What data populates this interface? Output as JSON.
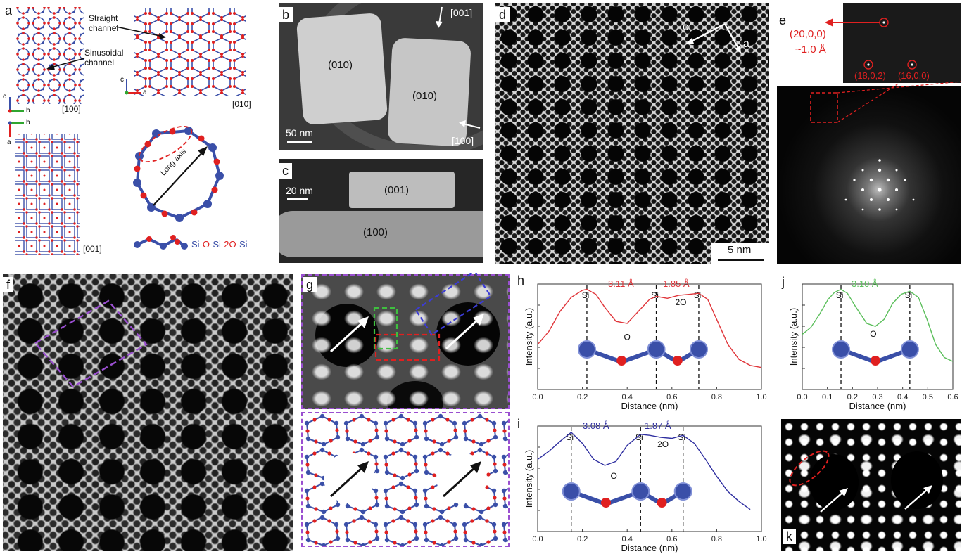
{
  "panels": {
    "a": {
      "label": "a",
      "straight_channel": "Straight\nchannel",
      "sinusoidal_channel": "Sinusoidal\nchannel",
      "view_100": "[100]",
      "view_010": "[010]",
      "view_001": "[001]",
      "axis_c": "c",
      "axis_b": "b",
      "axis_a": "a",
      "long_axis": "Long axis",
      "legend": [
        "Si",
        "-",
        "O",
        "-",
        "Si",
        "-",
        "2O",
        "-",
        "Si"
      ]
    },
    "b": {
      "label": "b",
      "facet_left": "(010)",
      "facet_right": "(010)",
      "dir_001": "[001]",
      "dir_100": "[100]",
      "scale": "50 nm"
    },
    "c": {
      "label": "c",
      "facet_top": "(001)",
      "facet_bottom": "(100)",
      "scale": "20 nm"
    },
    "d": {
      "label": "d",
      "axis_c": "c",
      "axis_a": "a",
      "scale": "5 nm"
    },
    "e": {
      "label": "e",
      "spot_main": "(20,0,0)",
      "spot_res": "~1.0 Å",
      "spot_a": "(18,0,2)",
      "spot_b": "(16,0,0)"
    },
    "f": {
      "label": "f"
    },
    "g": {
      "label": "g"
    },
    "h": {
      "label": "h",
      "label_d1": "3.11 Å",
      "label_d2": "1.85 Å"
    },
    "i": {
      "label": "i",
      "label_d1": "3.08 Å",
      "label_d2": "1.87 Å"
    },
    "j": {
      "label": "j",
      "label_d1": "3.10 Å"
    },
    "k": {
      "label": "k"
    }
  },
  "colors": {
    "si": "#3a4fa8",
    "o": "#e02020",
    "h_line": "#e0353a",
    "i_line": "#2f2fa0",
    "j_line": "#5cbf5c",
    "box_purple": "#9a4fd0",
    "box_green": "#3fbf3f",
    "box_blue": "#3c3cd6"
  },
  "chart_data": [
    {
      "type": "line",
      "panel": "h",
      "xlabel": "Distance (nm)",
      "ylabel": "Intensity (a.u.)",
      "xlim": [
        0.0,
        1.0
      ],
      "xticks": [
        "0.0",
        "0.2",
        "0.4",
        "0.6",
        "0.8",
        "1.0"
      ],
      "markers": [
        {
          "x": 0.22,
          "label": "Si"
        },
        {
          "x": 0.53,
          "label": "Si"
        },
        {
          "x": 0.72,
          "label": "Si"
        }
      ],
      "annotations": [
        "O",
        "2O"
      ],
      "x": [
        0.0,
        0.05,
        0.1,
        0.15,
        0.2,
        0.22,
        0.26,
        0.3,
        0.35,
        0.4,
        0.45,
        0.5,
        0.53,
        0.58,
        0.63,
        0.68,
        0.72,
        0.76,
        0.8,
        0.85,
        0.9,
        0.95,
        1.0
      ],
      "y": [
        0.45,
        0.58,
        0.78,
        0.92,
        0.99,
        1.0,
        0.95,
        0.82,
        0.68,
        0.66,
        0.78,
        0.9,
        0.93,
        0.91,
        0.94,
        0.95,
        0.96,
        0.9,
        0.7,
        0.45,
        0.3,
        0.24,
        0.22
      ]
    },
    {
      "type": "line",
      "panel": "i",
      "xlabel": "Distance (nm)",
      "ylabel": "Intensity (a.u.)",
      "xlim": [
        0.0,
        1.0
      ],
      "xticks": [
        "0.0",
        "0.2",
        "0.4",
        "0.6",
        "0.8",
        "1.0"
      ],
      "markers": [
        {
          "x": 0.15,
          "label": "Si"
        },
        {
          "x": 0.46,
          "label": "Si"
        },
        {
          "x": 0.65,
          "label": "Si"
        }
      ],
      "annotations": [
        "O",
        "2O"
      ],
      "x": [
        0.0,
        0.05,
        0.1,
        0.15,
        0.2,
        0.25,
        0.3,
        0.35,
        0.4,
        0.46,
        0.5,
        0.55,
        0.6,
        0.65,
        0.7,
        0.75,
        0.8,
        0.85,
        0.9,
        0.95
      ],
      "y": [
        0.72,
        0.8,
        0.9,
        0.99,
        0.88,
        0.72,
        0.66,
        0.7,
        0.86,
        0.97,
        0.96,
        0.94,
        0.93,
        0.96,
        0.88,
        0.72,
        0.55,
        0.4,
        0.3,
        0.22
      ]
    },
    {
      "type": "line",
      "panel": "j",
      "xlabel": "Distance (nm)",
      "ylabel": "Intensity (a.u.)",
      "xlim": [
        0.0,
        0.7
      ],
      "xticks": [
        "0.0",
        "0.1",
        "0.2",
        "0.3",
        "0.4",
        "0.5",
        "0.6"
      ],
      "markers": [
        {
          "x": 0.18,
          "label": "Si"
        },
        {
          "x": 0.5,
          "label": "Si"
        }
      ],
      "annotations": [
        "O"
      ],
      "x": [
        0.0,
        0.04,
        0.08,
        0.12,
        0.15,
        0.18,
        0.21,
        0.25,
        0.3,
        0.34,
        0.38,
        0.42,
        0.46,
        0.5,
        0.54,
        0.58,
        0.62,
        0.66,
        0.7
      ],
      "y": [
        0.55,
        0.62,
        0.75,
        0.9,
        0.97,
        1.0,
        0.96,
        0.82,
        0.66,
        0.63,
        0.7,
        0.86,
        0.95,
        0.98,
        0.92,
        0.7,
        0.45,
        0.32,
        0.28
      ]
    }
  ]
}
